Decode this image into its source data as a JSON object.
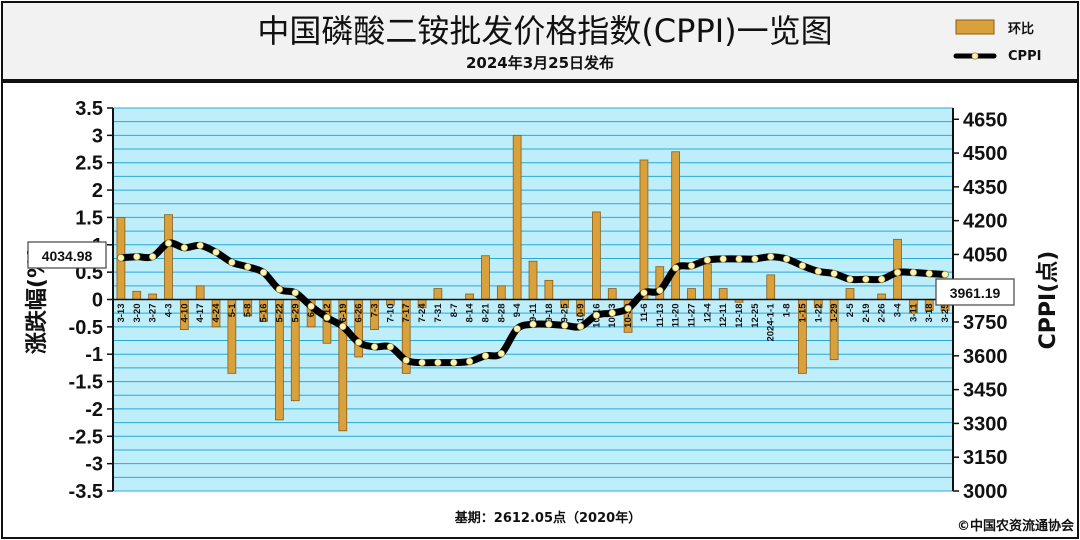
{
  "title": "中国磷酸二铵批发价格指数(CPPI)一览图",
  "subtitle": "2024年3月25日发布",
  "legend": {
    "bar_label": "环比",
    "line_label": "CPPI"
  },
  "footer": {
    "base": "基期：2612.05点（2020年）",
    "copyright": "©中国农资流通协会"
  },
  "callouts": {
    "first": "4034.98",
    "last": "3961.19"
  },
  "colors": {
    "plot_bg": "#bfeefb",
    "grid": "#2aa8d8",
    "bar": "#d9a13c",
    "bar_edge": "#8a5c17",
    "line": "#000000",
    "marker": "#fff3b0",
    "header_bg": "#f2f2f2"
  },
  "chart_data": {
    "type": "bar+line",
    "categories": [
      "3-13",
      "3-20",
      "3-27",
      "4-3",
      "4-10",
      "4-17",
      "4-24",
      "5-1",
      "5-8",
      "5-16",
      "5-22",
      "5-29",
      "6-5",
      "6-12",
      "6-19",
      "6-26",
      "7-3",
      "7-10",
      "7-17",
      "7-24",
      "7-31",
      "8-7",
      "8-14",
      "8-21",
      "8-28",
      "9-4",
      "9-11",
      "9-18",
      "9-25",
      "10-9",
      "10-16",
      "10-23",
      "10-30",
      "11-6",
      "11-13",
      "11-20",
      "11-27",
      "12-4",
      "12-11",
      "12-18",
      "12-25",
      "2024-1-1",
      "1-8",
      "1-15",
      "1-22",
      "1-29",
      "2-5",
      "2-19",
      "2-26",
      "3-4",
      "3-11",
      "3-18",
      "3-25"
    ],
    "series": [
      {
        "name": "环比",
        "axis": "left",
        "values": [
          1.5,
          0.15,
          0.1,
          1.55,
          -0.55,
          0.25,
          -0.5,
          -1.35,
          -0.3,
          -0.4,
          -2.2,
          -1.85,
          -0.5,
          -0.8,
          -2.4,
          -1.05,
          -0.55,
          -0.1,
          -1.35,
          -0.15,
          0.2,
          0,
          0.1,
          0.8,
          0.25,
          3.0,
          0.7,
          0.35,
          -0.15,
          -0.3,
          1.6,
          0.2,
          -0.6,
          2.55,
          0.6,
          2.7,
          0.2,
          0.65,
          0.2,
          -0.05,
          0,
          0.45,
          0,
          -1.35,
          -0.15,
          -1.1,
          0.2,
          0,
          0.1,
          1.1,
          -0.25,
          -0.2,
          -0.2
        ]
      },
      {
        "name": "CPPI",
        "axis": "right",
        "values": [
          4034.98,
          4040,
          4040,
          4100,
          4080,
          4090,
          4060,
          4015,
          3995,
          3970,
          3895,
          3880,
          3820,
          3770,
          3730,
          3660,
          3640,
          3640,
          3580,
          3570,
          3570,
          3570,
          3575,
          3600,
          3610,
          3720,
          3740,
          3740,
          3735,
          3730,
          3780,
          3790,
          3810,
          3880,
          3890,
          3990,
          4000,
          4025,
          4030,
          4030,
          4030,
          4040,
          4030,
          4000,
          3975,
          3965,
          3940,
          3940,
          3940,
          3970,
          3970,
          3965,
          3961.19
        ]
      }
    ],
    "ylim_left": [
      -3.5,
      3.5
    ],
    "yticks_left": [
      -3.5,
      -3,
      -2.5,
      -2,
      -1.5,
      -1,
      -0.5,
      0,
      0.5,
      1,
      1.5,
      2,
      2.5,
      3,
      3.5
    ],
    "ylim_right": [
      3000,
      4700
    ],
    "yticks_right": [
      3000,
      3150,
      3300,
      3450,
      3600,
      3750,
      3900,
      4050,
      4200,
      4350,
      4500,
      4650
    ],
    "ylabel_left": "涨跌幅(%)",
    "ylabel_right": "CPPI(点)",
    "grid": true,
    "legend_position": "top-right"
  }
}
